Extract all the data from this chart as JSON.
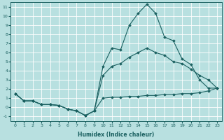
{
  "title": "",
  "xlabel": "Humidex (Indice chaleur)",
  "bg_color": "#b8e0e0",
  "grid_color": "#ffffff",
  "line_color": "#1a6060",
  "xlim": [
    -0.5,
    23.5
  ],
  "ylim": [
    -1.5,
    11.5
  ],
  "xticks": [
    0,
    1,
    2,
    3,
    4,
    5,
    6,
    7,
    8,
    9,
    10,
    11,
    12,
    13,
    14,
    15,
    16,
    17,
    18,
    19,
    20,
    21,
    22,
    23
  ],
  "yticks": [
    -1,
    0,
    1,
    2,
    3,
    4,
    5,
    6,
    7,
    8,
    9,
    10,
    11
  ],
  "series": [
    {
      "x": [
        0,
        1,
        2,
        3,
        4,
        5,
        6,
        7,
        8,
        9,
        10,
        11,
        12,
        13,
        14,
        15,
        16,
        17,
        18,
        19,
        20,
        21,
        22,
        23
      ],
      "y": [
        1.5,
        0.7,
        0.7,
        0.3,
        0.3,
        0.2,
        -0.2,
        -0.4,
        -0.9,
        -0.4,
        4.5,
        6.5,
        6.3,
        9.0,
        10.3,
        11.3,
        10.3,
        7.7,
        7.3,
        5.3,
        4.7,
        3.0,
        2.1,
        2.1
      ]
    },
    {
      "x": [
        0,
        1,
        2,
        3,
        4,
        5,
        6,
        7,
        8,
        9,
        10,
        11,
        12,
        13,
        14,
        15,
        16,
        17,
        18,
        19,
        20,
        21,
        22,
        23
      ],
      "y": [
        1.5,
        0.7,
        0.7,
        0.3,
        0.3,
        0.2,
        -0.2,
        -0.4,
        -0.9,
        -0.4,
        3.5,
        4.5,
        4.8,
        5.5,
        6.0,
        6.5,
        6.0,
        5.7,
        5.0,
        4.8,
        4.2,
        3.5,
        3.0,
        2.1
      ]
    },
    {
      "x": [
        0,
        1,
        2,
        3,
        4,
        5,
        6,
        7,
        8,
        9,
        10,
        11,
        12,
        13,
        14,
        15,
        16,
        17,
        18,
        19,
        20,
        21,
        22,
        23
      ],
      "y": [
        1.5,
        0.7,
        0.7,
        0.3,
        0.3,
        0.2,
        -0.2,
        -0.4,
        -0.9,
        -0.4,
        1.0,
        1.1,
        1.1,
        1.2,
        1.2,
        1.3,
        1.3,
        1.4,
        1.4,
        1.5,
        1.5,
        1.6,
        1.8,
        2.1
      ]
    }
  ]
}
